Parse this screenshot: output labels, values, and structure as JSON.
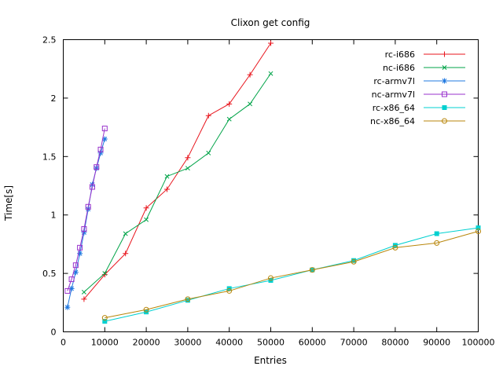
{
  "chart_data": {
    "type": "line",
    "title": "Clixon get config",
    "xlabel": "Entries",
    "ylabel": "Time[s]",
    "xlim": [
      0,
      100000
    ],
    "ylim": [
      0,
      2.5
    ],
    "xticks": [
      0,
      10000,
      20000,
      30000,
      40000,
      50000,
      60000,
      70000,
      80000,
      90000,
      100000
    ],
    "yticks": [
      0,
      0.5,
      1,
      1.5,
      2,
      2.5
    ],
    "grid": false,
    "legend_position": "top-right-inside",
    "series": [
      {
        "name": "rc-i686",
        "color": "#e8141c",
        "marker": "plus",
        "x": [
          5000,
          10000,
          15000,
          20000,
          25000,
          30000,
          35000,
          40000,
          45000,
          50000
        ],
        "y": [
          0.28,
          0.49,
          0.67,
          1.06,
          1.22,
          1.49,
          1.85,
          1.95,
          2.2,
          2.47
        ]
      },
      {
        "name": "nc-i686",
        "color": "#00a348",
        "marker": "cross",
        "x": [
          5000,
          10000,
          15000,
          20000,
          25000,
          30000,
          35000,
          40000,
          45000,
          50000
        ],
        "y": [
          0.34,
          0.5,
          0.84,
          0.96,
          1.33,
          1.4,
          1.53,
          1.82,
          1.95,
          2.21
        ]
      },
      {
        "name": "rc-armv7l",
        "color": "#1f78e0",
        "marker": "asterisk",
        "x": [
          1000,
          2000,
          3000,
          4000,
          5000,
          6000,
          7000,
          8000,
          9000,
          10000
        ],
        "y": [
          0.21,
          0.37,
          0.51,
          0.67,
          0.85,
          1.05,
          1.26,
          1.4,
          1.53,
          1.65
        ]
      },
      {
        "name": "nc-armv7l",
        "color": "#9932cc",
        "marker": "square-open",
        "x": [
          1000,
          2000,
          3000,
          4000,
          5000,
          6000,
          7000,
          8000,
          9000,
          10000
        ],
        "y": [
          0.35,
          0.45,
          0.57,
          0.72,
          0.88,
          1.07,
          1.24,
          1.41,
          1.56,
          1.74
        ]
      },
      {
        "name": "rc-x86_64",
        "color": "#00d0d0",
        "marker": "square-filled",
        "x": [
          10000,
          20000,
          30000,
          40000,
          50000,
          60000,
          70000,
          80000,
          90000,
          100000
        ],
        "y": [
          0.09,
          0.17,
          0.27,
          0.37,
          0.44,
          0.53,
          0.61,
          0.74,
          0.84,
          0.89
        ]
      },
      {
        "name": "nc-x86_64",
        "color": "#b8860b",
        "marker": "circle-open",
        "x": [
          10000,
          20000,
          30000,
          40000,
          50000,
          60000,
          70000,
          80000,
          90000,
          100000
        ],
        "y": [
          0.12,
          0.19,
          0.28,
          0.35,
          0.46,
          0.53,
          0.6,
          0.72,
          0.76,
          0.86
        ]
      }
    ]
  }
}
